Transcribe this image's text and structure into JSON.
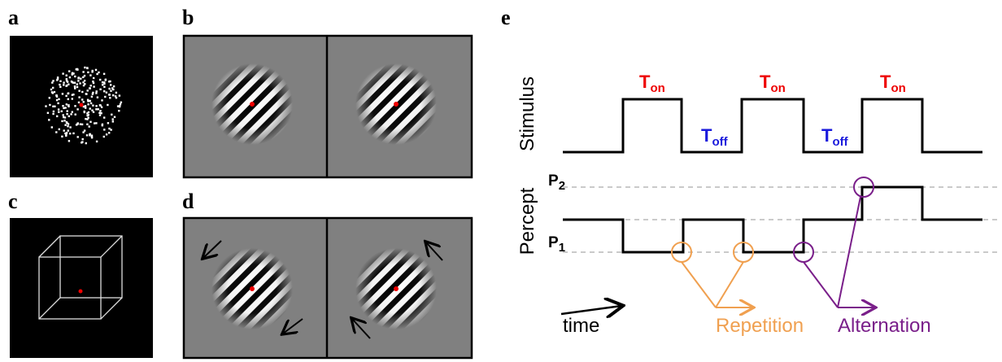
{
  "panels": {
    "a": "a",
    "b": "b",
    "c": "c",
    "d": "d",
    "e": "e"
  },
  "diagram": {
    "stimulus_label": "Stimulus",
    "percept_label": "Percept",
    "t_on": [
      {
        "base": "T",
        "sub": "on"
      },
      {
        "base": "T",
        "sub": "on"
      },
      {
        "base": "T",
        "sub": "on"
      }
    ],
    "t_off": [
      {
        "base": "T",
        "sub": "off"
      },
      {
        "base": "T",
        "sub": "off"
      }
    ],
    "p1": {
      "base": "P",
      "sub": "1"
    },
    "p2": {
      "base": "P",
      "sub": "2"
    },
    "time": "time",
    "repetition": "Repetition",
    "alternation": "Alternation"
  }
}
